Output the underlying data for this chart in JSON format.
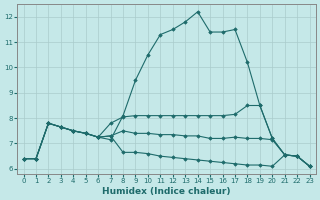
{
  "xlabel": "Humidex (Indice chaleur)",
  "xlim": [
    -0.5,
    23.5
  ],
  "ylim": [
    5.8,
    12.5
  ],
  "xticks": [
    0,
    1,
    2,
    3,
    4,
    5,
    6,
    7,
    8,
    9,
    10,
    11,
    12,
    13,
    14,
    15,
    16,
    17,
    18,
    19,
    20,
    21,
    22,
    23
  ],
  "yticks": [
    6,
    7,
    8,
    9,
    10,
    11,
    12
  ],
  "bg_color": "#c5e8e8",
  "line_color": "#1e6b6b",
  "grid_color": "#b0d8d8",
  "lines": [
    {
      "x": [
        0,
        1,
        2,
        3,
        4,
        5,
        6,
        7,
        8,
        9,
        10,
        11,
        12,
        13,
        14,
        15,
        16,
        17,
        18,
        19,
        20,
        21,
        22,
        23
      ],
      "y": [
        6.4,
        6.4,
        7.8,
        7.65,
        7.5,
        7.4,
        7.25,
        7.15,
        8.1,
        9.5,
        10.5,
        11.3,
        11.5,
        11.8,
        12.2,
        11.4,
        11.4,
        11.5,
        10.2,
        8.5,
        7.2,
        6.55,
        6.5,
        6.1
      ]
    },
    {
      "x": [
        0,
        1,
        2,
        3,
        4,
        5,
        6,
        7,
        8,
        9,
        10,
        11,
        12,
        13,
        14,
        15,
        16,
        17,
        18,
        19,
        20,
        21,
        22,
        23
      ],
      "y": [
        6.4,
        6.4,
        7.8,
        7.65,
        7.5,
        7.4,
        7.25,
        7.8,
        8.05,
        8.1,
        8.1,
        8.1,
        8.1,
        8.1,
        8.1,
        8.1,
        8.1,
        8.15,
        8.5,
        8.5,
        7.2,
        6.55,
        6.5,
        6.1
      ]
    },
    {
      "x": [
        0,
        1,
        2,
        3,
        4,
        5,
        6,
        7,
        8,
        9,
        10,
        11,
        12,
        13,
        14,
        15,
        16,
        17,
        18,
        19,
        20,
        21,
        22,
        23
      ],
      "y": [
        6.4,
        6.4,
        7.8,
        7.65,
        7.5,
        7.4,
        7.25,
        7.3,
        7.5,
        7.4,
        7.4,
        7.35,
        7.35,
        7.3,
        7.3,
        7.2,
        7.2,
        7.25,
        7.2,
        7.2,
        7.15,
        6.55,
        6.5,
        6.1
      ]
    },
    {
      "x": [
        0,
        1,
        2,
        3,
        4,
        5,
        6,
        7,
        8,
        9,
        10,
        11,
        12,
        13,
        14,
        15,
        16,
        17,
        18,
        19,
        20,
        21,
        22,
        23
      ],
      "y": [
        6.4,
        6.4,
        7.8,
        7.65,
        7.5,
        7.4,
        7.25,
        7.3,
        6.65,
        6.65,
        6.6,
        6.5,
        6.45,
        6.4,
        6.35,
        6.3,
        6.25,
        6.2,
        6.15,
        6.15,
        6.1,
        6.55,
        6.5,
        6.1
      ]
    }
  ]
}
